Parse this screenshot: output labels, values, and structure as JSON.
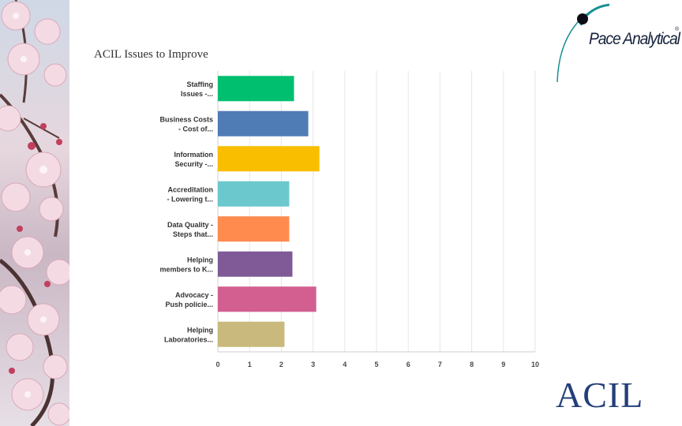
{
  "slide": {
    "title": "ACIL Issues to Improve",
    "pace_logo_text": "Pace Analytical",
    "pace_logo_mark": "®",
    "acil_logo_text": "ACIL"
  },
  "chart_data": {
    "type": "bar",
    "orientation": "horizontal",
    "categories": [
      [
        "Staffing",
        "Issues -..."
      ],
      [
        "Business Costs",
        "- Cost of..."
      ],
      [
        "Information",
        "Security -..."
      ],
      [
        "Accreditation",
        "- Lowering t..."
      ],
      [
        "Data Quality -",
        "Steps that..."
      ],
      [
        "Helping",
        "members to K..."
      ],
      [
        "Advocacy -",
        "Push policie..."
      ],
      [
        "Helping",
        "Laboratories..."
      ]
    ],
    "values": [
      2.4,
      2.85,
      3.2,
      2.25,
      2.25,
      2.35,
      3.1,
      2.1
    ],
    "colors": [
      "#00bf6f",
      "#507cb6",
      "#f9be00",
      "#6bc8cd",
      "#ff8b4f",
      "#7f5a96",
      "#d25f90",
      "#c9b97c"
    ],
    "xlim": [
      0,
      10
    ],
    "xticks": [
      0,
      1,
      2,
      3,
      4,
      5,
      6,
      7,
      8,
      9,
      10
    ],
    "grid": true
  }
}
